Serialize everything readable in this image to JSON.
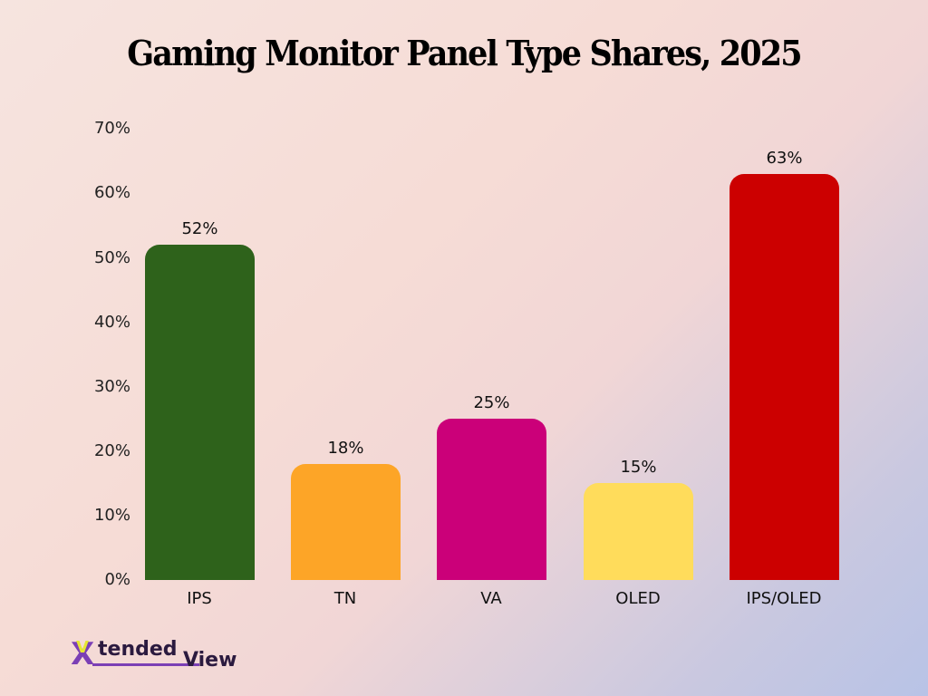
{
  "title": "Gaming Monitor Panel Type Shares, 2025",
  "y_ticks": [
    "0%",
    "10%",
    "20%",
    "30%",
    "40%",
    "50%",
    "60%",
    "70%"
  ],
  "bars": [
    {
      "label": "IPS",
      "value": 52,
      "value_label": "52%",
      "color": "#2e621b"
    },
    {
      "label": "TN",
      "value": 18,
      "value_label": "18%",
      "color": "#fda527"
    },
    {
      "label": "VA",
      "value": 25,
      "value_label": "25%",
      "color": "#cb0079"
    },
    {
      "label": "OLED",
      "value": 15,
      "value_label": "15%",
      "color": "#ffdc5b"
    },
    {
      "label": "IPS/OLED",
      "value": 63,
      "value_label": "63%",
      "color": "#cc0000"
    }
  ],
  "logo": {
    "x": "X",
    "v": "V",
    "part1": "tended",
    "part2": "View"
  },
  "chart_data": {
    "type": "bar",
    "title": "Gaming Monitor Panel Type Shares, 2025",
    "categories": [
      "IPS",
      "TN",
      "VA",
      "OLED",
      "IPS/OLED"
    ],
    "values": [
      52,
      18,
      25,
      15,
      63
    ],
    "xlabel": "",
    "ylabel": "",
    "ylim": [
      0,
      70
    ],
    "y_tick_labels": [
      "0%",
      "10%",
      "20%",
      "30%",
      "40%",
      "50%",
      "60%",
      "70%"
    ],
    "data_labels": [
      "52%",
      "18%",
      "25%",
      "15%",
      "63%"
    ],
    "colors": [
      "#2e621b",
      "#fda527",
      "#cb0079",
      "#ffdc5b",
      "#cc0000"
    ],
    "grid": false,
    "legend": "none"
  }
}
